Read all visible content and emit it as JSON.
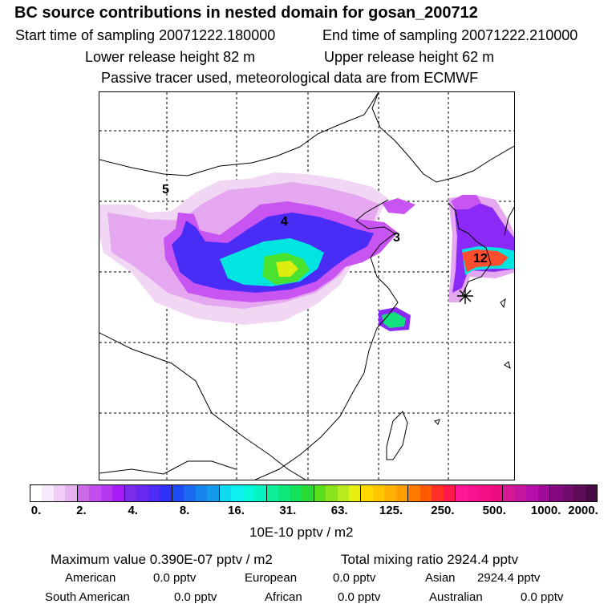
{
  "header": {
    "title": "BC  source contributions in nested domain for gosan_200712",
    "start_label": "Start time of sampling 20071222.180000",
    "end_label": "End time of sampling 20071222.210000",
    "lower_label": "Lower release height   82 m",
    "upper_label": "Upper release height   62 m",
    "tracer_label": "Passive tracer used, meteorological data are from ECMWF"
  },
  "map": {
    "labels": [
      "5",
      "4",
      "3",
      "12"
    ],
    "receptor_marker": "star-icon"
  },
  "colors": {
    "map_plume": [
      "#f2d7f5",
      "#e5a8f0",
      "#c855f2",
      "#8b2af6",
      "#4a2cf7",
      "#1a8ff0",
      "#00e5e0",
      "#12e07d",
      "#49e22e",
      "#a7e524",
      "#dcee10",
      "#ffb000",
      "#ff4d2d"
    ],
    "land_outline": "#000000",
    "grid": "#000000"
  },
  "chart_data": {
    "type": "heatmap",
    "title": "BC  source contributions in nested domain for gosan_200712",
    "colorbar": {
      "unit_label": "10E-10 pptv / m2",
      "tick_labels": [
        "0.",
        "2.",
        "4.",
        "8.",
        "16.",
        "31.",
        "63.",
        "125.",
        "250.",
        "500.",
        "1000.",
        "2000."
      ],
      "segments": [
        [
          "#ffffff",
          "#f8e8fb",
          "#f0cdf5",
          "#e6b1f0"
        ],
        [
          "#cc69e8",
          "#c24fec",
          "#b637ef",
          "#a61ef5"
        ],
        [
          "#7a2de8",
          "#6929f0",
          "#4f2bf6",
          "#2f2ff6"
        ],
        [
          "#1d4df2",
          "#1a69ef",
          "#1685ed",
          "#139ceb"
        ],
        [
          "#11d9ed",
          "#0cf1f0",
          "#07f6dc",
          "#06f3c3"
        ],
        [
          "#0ded9a",
          "#0fe77b",
          "#14e25b",
          "#2ad836"
        ],
        [
          "#59de1e",
          "#8ae31c",
          "#bce91c",
          "#e8ef12"
        ],
        [
          "#ffd900",
          "#ffc600",
          "#ffb000",
          "#ff9e00"
        ],
        [
          "#ff7a00",
          "#ff5a00",
          "#ff3028",
          "#ff194f"
        ],
        [
          "#ff1796",
          "#f9128f",
          "#f40f88",
          "#ee0c82"
        ],
        [
          "#d71a93",
          "#c7169e",
          "#b510aa",
          "#9f0a9a"
        ],
        [
          "#84087f",
          "#6f0c6c",
          "#5e0b58",
          "#470a44"
        ]
      ]
    },
    "maximum_value": "Maximum value  0.390E-07 pptv / m2",
    "total_mixing_ratio": "Total mixing ratio     2924.4 pptv",
    "regions": [
      {
        "name": "American",
        "value": "0.0 pptv"
      },
      {
        "name": "European",
        "value": "0.0 pptv"
      },
      {
        "name": "Asian",
        "value": "2924.4 pptv"
      },
      {
        "name": "South American",
        "value": "0.0 pptv"
      },
      {
        "name": "African",
        "value": "0.0 pptv"
      },
      {
        "name": "Australian",
        "value": "0.0 pptv"
      }
    ]
  }
}
